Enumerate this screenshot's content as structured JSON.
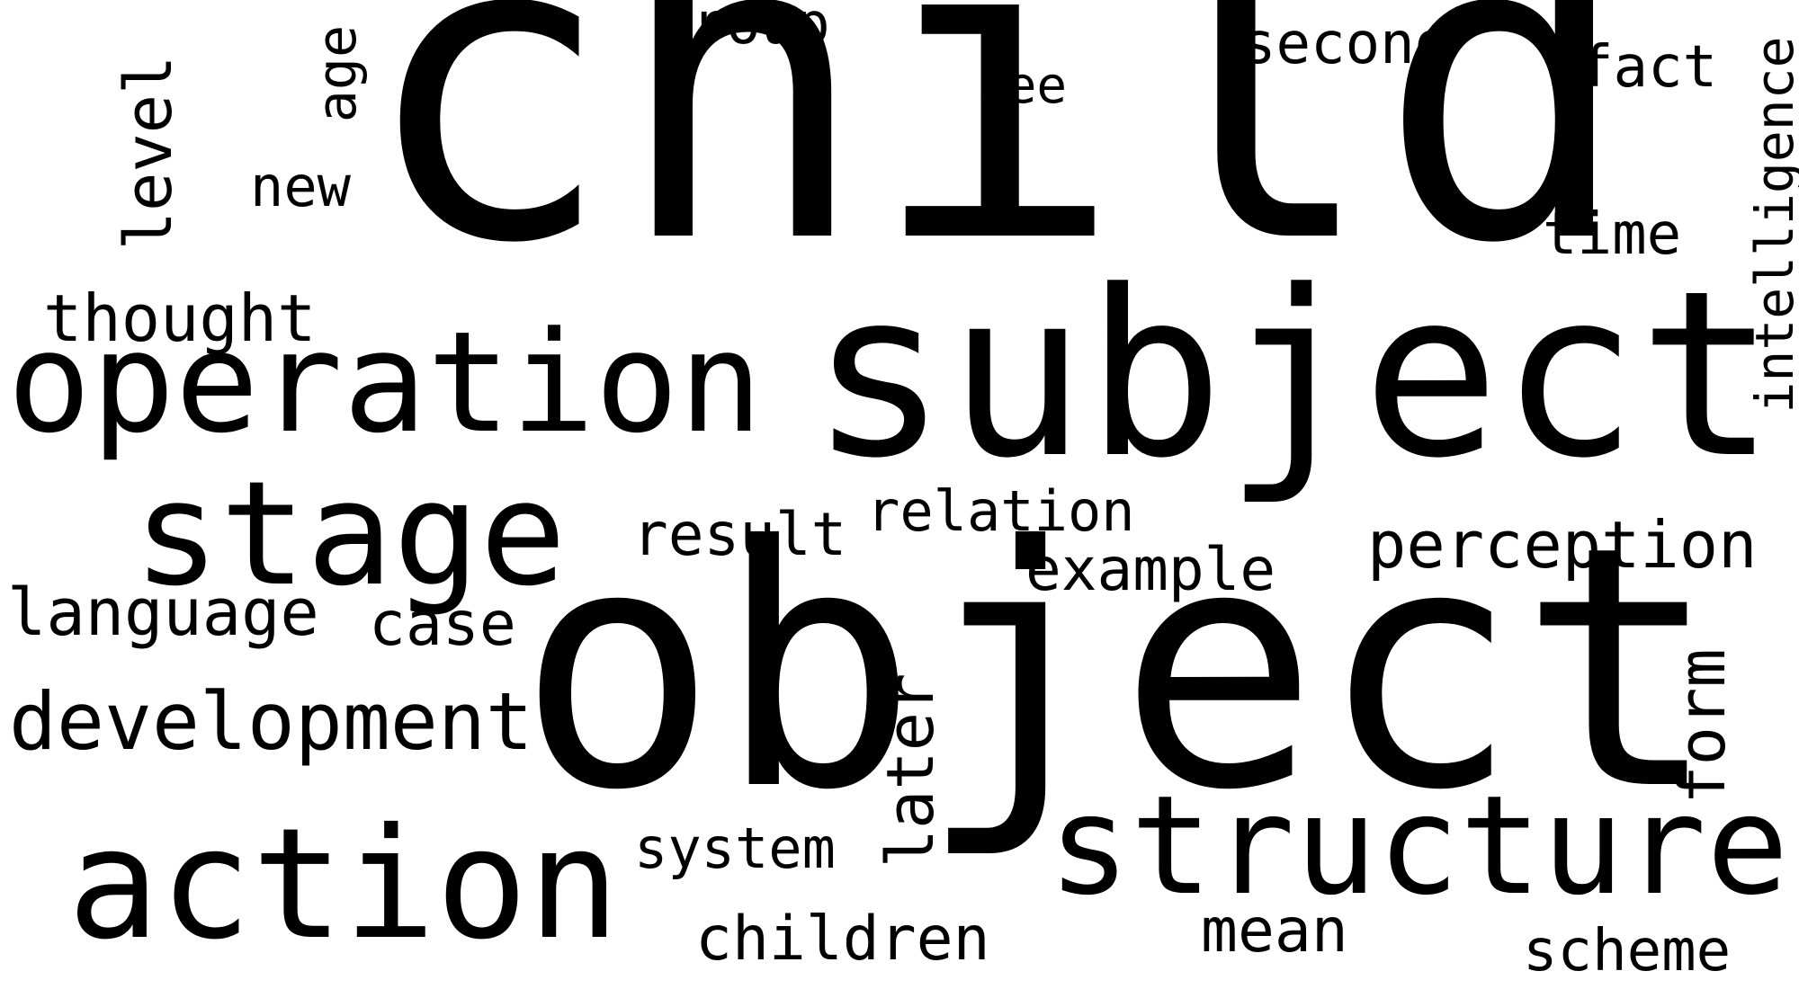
{
  "words": {
    "child": "child",
    "subject": "subject",
    "object": "object",
    "operation": "operation",
    "stage": "stage",
    "action": "action",
    "structure": "structure",
    "development": "development",
    "thought": "thought",
    "language": "language",
    "case": "case",
    "result": "result",
    "relation": "relation",
    "example": "example",
    "perception": "perception",
    "system": "system",
    "children": "children",
    "mean": "mean",
    "scheme": "scheme",
    "group": "group",
    "see": "see",
    "second": "second",
    "fact": "fact",
    "time": "time",
    "new": "new",
    "age": "age",
    "level": "level",
    "intelligence": "intelligence",
    "form": "form",
    "later": "later"
  },
  "colors": {
    "background": "#ffffff",
    "text": "#000000"
  }
}
